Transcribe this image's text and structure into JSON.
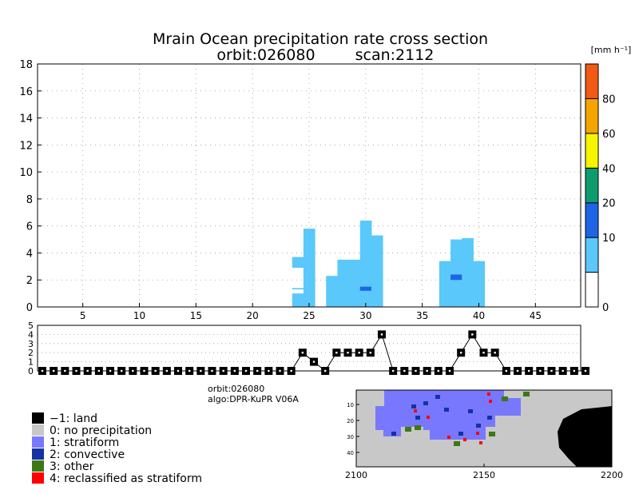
{
  "colors": {
    "background": "#ffffff",
    "precip_light": "#5ac8fa",
    "precip_mid": "#1e64e6",
    "land": "#000000",
    "no_precip": "#c8c8c8",
    "stratiform": "#7878ff",
    "convective": "#1432a0",
    "other": "#3c7814",
    "reclassified": "#ff0000"
  },
  "chart_data": [
    {
      "id": "cross-section",
      "type": "heatmap",
      "title_line1": "Mrain Ocean precipitation rate cross section",
      "title_line2_left": "orbit:026080",
      "title_line2_right": "scan:2112",
      "xlabel": "",
      "ylabel": "",
      "xlim": [
        1,
        49
      ],
      "ylim": [
        0,
        18
      ],
      "x_ticks": [
        5,
        10,
        15,
        20,
        25,
        30,
        35,
        40,
        45
      ],
      "y_ticks": [
        0,
        2,
        4,
        6,
        8,
        10,
        12,
        14,
        16,
        18
      ],
      "grid": true,
      "colorbar": {
        "unit": "[mm h⁻¹]",
        "bands": [
          {
            "color": "#ffffff",
            "label": "0"
          },
          {
            "color": "#5ac8fa",
            "label": ""
          },
          {
            "color": "#1e64e6",
            "label": "10"
          },
          {
            "color": "#0f9b6e",
            "label": "20"
          },
          {
            "color": "#f5f500",
            "label": "40"
          },
          {
            "color": "#f5a500",
            "label": "60"
          },
          {
            "color": "#f05a14",
            "label": "80"
          }
        ]
      },
      "columns": [
        {
          "x": 24,
          "segments": [
            {
              "y0": 0,
              "y1": 1.0,
              "level": "light"
            },
            {
              "y0": 1.3,
              "y1": 1.4,
              "level": "light"
            },
            {
              "y0": 2.9,
              "y1": 3.7,
              "level": "light"
            }
          ]
        },
        {
          "x": 25,
          "segments": [
            {
              "y0": 0,
              "y1": 5.8,
              "level": "light"
            }
          ]
        },
        {
          "x": 27,
          "segments": [
            {
              "y0": 0,
              "y1": 2.3,
              "level": "light"
            }
          ]
        },
        {
          "x": 28,
          "segments": [
            {
              "y0": 0,
              "y1": 3.5,
              "level": "light"
            }
          ]
        },
        {
          "x": 29,
          "segments": [
            {
              "y0": 0,
              "y1": 3.5,
              "level": "light"
            }
          ]
        },
        {
          "x": 30,
          "segments": [
            {
              "y0": 0,
              "y1": 6.4,
              "level": "light"
            },
            {
              "y0": 1.2,
              "y1": 1.5,
              "level": "mid"
            }
          ]
        },
        {
          "x": 31,
          "segments": [
            {
              "y0": 0,
              "y1": 5.3,
              "level": "light"
            }
          ]
        },
        {
          "x": 37,
          "segments": [
            {
              "y0": 0,
              "y1": 3.4,
              "level": "light"
            }
          ]
        },
        {
          "x": 38,
          "segments": [
            {
              "y0": 0,
              "y1": 5.0,
              "level": "light"
            },
            {
              "y0": 2.0,
              "y1": 2.4,
              "level": "mid"
            }
          ]
        },
        {
          "x": 39,
          "segments": [
            {
              "y0": 0,
              "y1": 5.1,
              "level": "light"
            }
          ]
        },
        {
          "x": 40,
          "segments": [
            {
              "y0": 0,
              "y1": 3.4,
              "level": "light"
            }
          ]
        }
      ]
    },
    {
      "id": "precip-type",
      "type": "line",
      "xlim": [
        1,
        49
      ],
      "ylim": [
        0,
        5
      ],
      "y_ticks": [
        0,
        1,
        2,
        3,
        4,
        5
      ],
      "grid": true,
      "x": [
        1,
        2,
        3,
        4,
        5,
        6,
        7,
        8,
        9,
        10,
        11,
        12,
        13,
        14,
        15,
        16,
        17,
        18,
        19,
        20,
        21,
        22,
        23,
        24,
        25,
        26,
        27,
        28,
        29,
        30,
        31,
        32,
        33,
        34,
        35,
        36,
        37,
        38,
        39,
        40,
        41,
        42,
        43,
        44,
        45,
        46,
        47,
        48,
        49
      ],
      "values": [
        0,
        0,
        0,
        0,
        0,
        0,
        0,
        0,
        0,
        0,
        0,
        0,
        0,
        0,
        0,
        0,
        0,
        0,
        0,
        0,
        0,
        0,
        0,
        2,
        1,
        0,
        2,
        2,
        2,
        2,
        4,
        0,
        0,
        0,
        0,
        0,
        0,
        2,
        4,
        2,
        2,
        0,
        0,
        0,
        0,
        0,
        0,
        0,
        0
      ]
    },
    {
      "id": "swath-map",
      "type": "heatmap",
      "x_ticks": [
        2100,
        2150,
        2200
      ],
      "y_ticks": [
        10,
        20,
        30,
        40
      ],
      "xlim": [
        2100,
        2200
      ],
      "ylim": [
        1,
        49
      ]
    }
  ],
  "info": {
    "orbit": "orbit:026080",
    "algo": "algo:DPR-KuPR V06A"
  },
  "legend": [
    {
      "key": "land",
      "color": "#000000",
      "label": "−1: land"
    },
    {
      "key": "none",
      "color": "#c8c8c8",
      "label": "0: no precipitation"
    },
    {
      "key": "strat",
      "color": "#7878ff",
      "label": "1: stratiform"
    },
    {
      "key": "conv",
      "color": "#1432a0",
      "label": "2: convective"
    },
    {
      "key": "other",
      "color": "#3c7814",
      "label": "3: other"
    },
    {
      "key": "recl",
      "color": "#ff0000",
      "label": "4: reclassified as stratiform"
    }
  ]
}
